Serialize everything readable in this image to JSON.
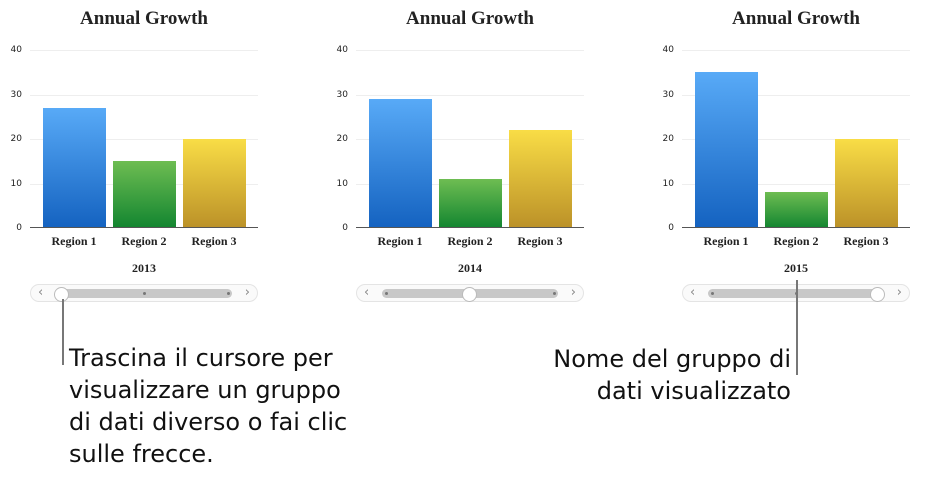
{
  "chart_data": [
    {
      "type": "bar",
      "title": "Annual Growth",
      "categories": [
        "Region 1",
        "Region 2",
        "Region 3"
      ],
      "values": [
        27,
        15,
        20
      ],
      "xlabel": "2013",
      "ylim": [
        0,
        40
      ],
      "yticks": [
        0,
        10,
        20,
        30,
        40
      ],
      "slider_position": 0
    },
    {
      "type": "bar",
      "title": "Annual Growth",
      "categories": [
        "Region 1",
        "Region 2",
        "Region 3"
      ],
      "values": [
        29,
        11,
        22
      ],
      "xlabel": "2014",
      "ylim": [
        0,
        40
      ],
      "yticks": [
        0,
        10,
        20,
        30,
        40
      ],
      "slider_position": 0.5
    },
    {
      "type": "bar",
      "title": "Annual Growth",
      "categories": [
        "Region 1",
        "Region 2",
        "Region 3"
      ],
      "values": [
        35,
        8,
        20
      ],
      "xlabel": "2015",
      "ylim": [
        0,
        40
      ],
      "yticks": [
        0,
        10,
        20,
        30,
        40
      ],
      "slider_position": 1
    }
  ],
  "colors": {
    "region1": "#3d8ae6",
    "region2": "#3aa540",
    "region3": "#e2c038"
  },
  "callouts": {
    "left": [
      "Trascina il cursore per",
      "visualizzare un gruppo",
      "di dati diverso o fai clic",
      "sulle frecce."
    ],
    "right": [
      "Nome del gruppo di",
      "dati visualizzato"
    ]
  }
}
